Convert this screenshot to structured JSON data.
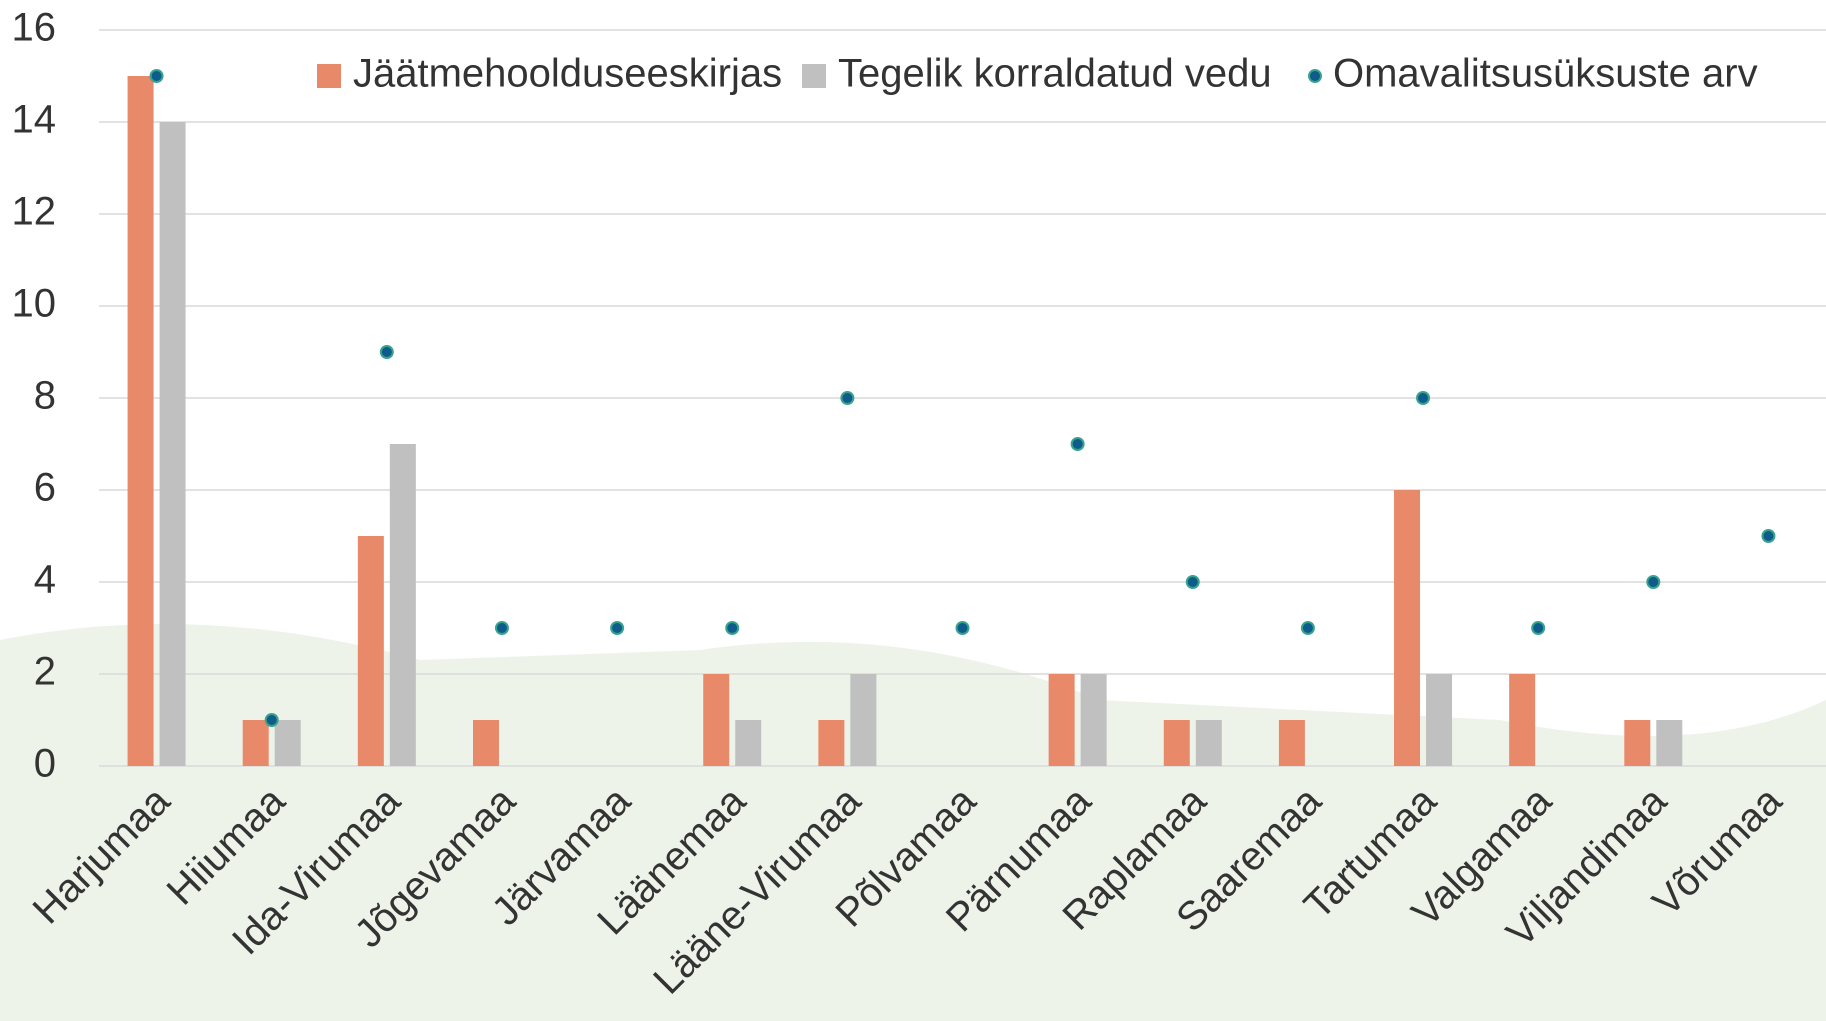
{
  "chart_data": {
    "type": "bar",
    "categories": [
      "Harjumaa",
      "Hiiumaa",
      "Ida-Virumaa",
      "Jõgevamaa",
      "Järvamaa",
      "Läänemaa",
      "Lääne-Virumaa",
      "Põlvamaa",
      "Pärnumaa",
      "Raplamaa",
      "Saaremaa",
      "Tartumaa",
      "Valgamaa",
      "Viljandimaa",
      "Võrumaa"
    ],
    "series": [
      {
        "name": "Jäätmehoolduseeskirjas",
        "color": "#e8896a",
        "type": "bar",
        "values": [
          15,
          1,
          5,
          1,
          0,
          2,
          1,
          0,
          2,
          1,
          1,
          6,
          2,
          1,
          0
        ]
      },
      {
        "name": "Tegelik korraldatud vedu",
        "color": "#c0c0c0",
        "type": "bar",
        "values": [
          14,
          1,
          7,
          0,
          0,
          1,
          2,
          0,
          2,
          1,
          0,
          2,
          0,
          1,
          0
        ]
      },
      {
        "name": "Omavalitsusüksuste arv",
        "color": "#0d5c8c",
        "type": "scatter",
        "values": [
          15,
          1,
          9,
          3,
          3,
          3,
          8,
          3,
          7,
          4,
          3,
          8,
          3,
          4,
          5
        ]
      }
    ],
    "ylim": [
      0,
      16
    ],
    "yticks": [
      0,
      2,
      4,
      6,
      8,
      10,
      12,
      14,
      16
    ],
    "grid": true,
    "legend": "top"
  }
}
